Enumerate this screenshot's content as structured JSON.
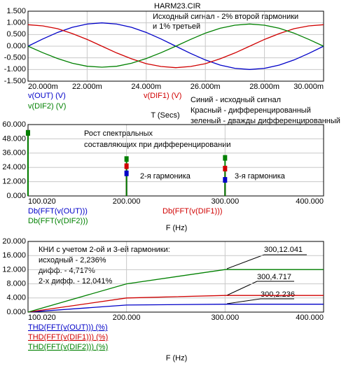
{
  "chart_data": [
    {
      "type": "line",
      "title": "HARM23.CIR",
      "xlabel": "T (Secs)",
      "annotations": [
        "Исходный сигнал - 2% второй гармоники",
        "и 1% третьей",
        "Синий - исходный сигнал",
        "Красный - дифференцированный",
        "зеленый - дважды дифференцированный"
      ],
      "x": [
        0.02,
        0.0205,
        0.021,
        0.0215,
        0.022,
        0.0225,
        0.023,
        0.0235,
        0.024,
        0.0245,
        0.025,
        0.0255,
        0.026,
        0.0265,
        0.027,
        0.0275,
        0.028,
        0.0285,
        0.029,
        0.0295,
        0.03
      ],
      "series": [
        {
          "name": "v(OUT) (V)",
          "color": "#0000c8",
          "values": [
            0,
            0.31,
            0.59,
            0.81,
            0.95,
            1,
            0.95,
            0.81,
            0.59,
            0.31,
            0,
            -0.31,
            -0.59,
            -0.81,
            -0.95,
            -1,
            -0.95,
            -0.81,
            -0.59,
            -0.31,
            0
          ]
        },
        {
          "name": "v(DIF1) (V)",
          "color": "#d00000",
          "values": [
            0.92,
            0.87,
            0.75,
            0.54,
            0.29,
            0,
            -0.29,
            -0.54,
            -0.75,
            -0.87,
            -0.92,
            -0.87,
            -0.75,
            -0.54,
            -0.29,
            0,
            0.29,
            0.54,
            0.75,
            0.87,
            0.92
          ]
        },
        {
          "name": "v(DIF2) (V)",
          "color": "#008000",
          "values": [
            0,
            -0.28,
            -0.53,
            -0.73,
            -0.86,
            -0.9,
            -0.86,
            -0.73,
            -0.53,
            -0.28,
            0,
            0.29,
            0.56,
            0.77,
            0.9,
            0.95,
            0.9,
            0.77,
            0.56,
            0.29,
            0
          ]
        }
      ],
      "xlim": [
        0.02,
        0.03
      ],
      "xticks": [
        {
          "value": 0.02,
          "label": "20.000m"
        },
        {
          "value": 0.022,
          "label": "22.000m"
        },
        {
          "value": 0.024,
          "label": "24.000m"
        },
        {
          "value": 0.026,
          "label": "26.000m"
        },
        {
          "value": 0.028,
          "label": "28.000m"
        },
        {
          "value": 0.03,
          "label": "30.000m"
        }
      ],
      "ylim": [
        -1.5,
        1.5
      ],
      "yticks": [
        {
          "value": -1.5,
          "label": "-1.500"
        },
        {
          "value": -1,
          "label": "-1.000"
        },
        {
          "value": -0.5,
          "label": "-0.500"
        },
        {
          "value": 0,
          "label": "0.000"
        },
        {
          "value": 0.5,
          "label": "0.500"
        },
        {
          "value": 1,
          "label": "1.000"
        },
        {
          "value": 1.5,
          "label": "1.500"
        }
      ],
      "grid": true
    },
    {
      "type": "stem",
      "xlabel": "F (Hz)",
      "annotations": [
        "Рост спектральных",
        "составляющих при дифференцировании",
        "2-я гармоника",
        "3-я гармоника"
      ],
      "x": [
        100,
        200,
        300
      ],
      "series": [
        {
          "name": "Db(FFT(v(OUT)))",
          "color": "#0000c8",
          "values": [
            53,
            19,
            13.5
          ]
        },
        {
          "name": "Db(FFT(v(DIF1)))",
          "color": "#d00000",
          "values": [
            53,
            25,
            23
          ]
        },
        {
          "name": "Db(FFT(v(DIF2)))",
          "color": "#008000",
          "values": [
            53,
            31,
            32
          ]
        }
      ],
      "xlim": [
        100.02,
        400
      ],
      "xticks": [
        {
          "value": 100.02,
          "label": "100.020"
        },
        {
          "value": 200,
          "label": "200.000"
        },
        {
          "value": 300,
          "label": "300.000"
        },
        {
          "value": 400,
          "label": "400.000"
        }
      ],
      "ylim": [
        0,
        60
      ],
      "yticks": [
        {
          "value": 0,
          "label": "0.000"
        },
        {
          "value": 12,
          "label": "12.000"
        },
        {
          "value": 24,
          "label": "24.000"
        },
        {
          "value": 36,
          "label": "36.000"
        },
        {
          "value": 48,
          "label": "48.000"
        },
        {
          "value": 60,
          "label": "60.000"
        }
      ],
      "grid": true
    },
    {
      "type": "line",
      "xlabel": "F (Hz)",
      "annotations": [
        "КНИ с учетом 2-ой и 3-ей гармоники:",
        "исходный - 2,236%",
        "дифф. - 4,717%",
        "2-х дифф. - 12,041%",
        "300,12.041",
        "300,4.717",
        "300,2.236"
      ],
      "x": [
        100.02,
        200,
        300,
        400
      ],
      "series": [
        {
          "name": "THD(FFT(v(OUT))) (%)",
          "color": "#0000c8",
          "values": [
            0,
            2,
            2.236,
            2.236
          ]
        },
        {
          "name": "THD(FFT(v(DIF1))) (%)",
          "color": "#d00000",
          "values": [
            0,
            4,
            4.717,
            4.717
          ]
        },
        {
          "name": "THD(FFT(v(DIF2))) (%)",
          "color": "#008000",
          "values": [
            0,
            8,
            12.041,
            12.041
          ]
        }
      ],
      "xlim": [
        100.02,
        400
      ],
      "xticks": [
        {
          "value": 100.02,
          "label": "100.020"
        },
        {
          "value": 200,
          "label": "200.000"
        },
        {
          "value": 300,
          "label": "300.000"
        },
        {
          "value": 400,
          "label": "400.000"
        }
      ],
      "ylim": [
        0,
        20
      ],
      "yticks": [
        {
          "value": 0,
          "label": "0.000"
        },
        {
          "value": 4,
          "label": "4.000"
        },
        {
          "value": 8,
          "label": "8.000"
        },
        {
          "value": 12,
          "label": "12.000"
        },
        {
          "value": 16,
          "label": "16.000"
        },
        {
          "value": 20,
          "label": "20.000"
        }
      ],
      "grid": true
    }
  ]
}
